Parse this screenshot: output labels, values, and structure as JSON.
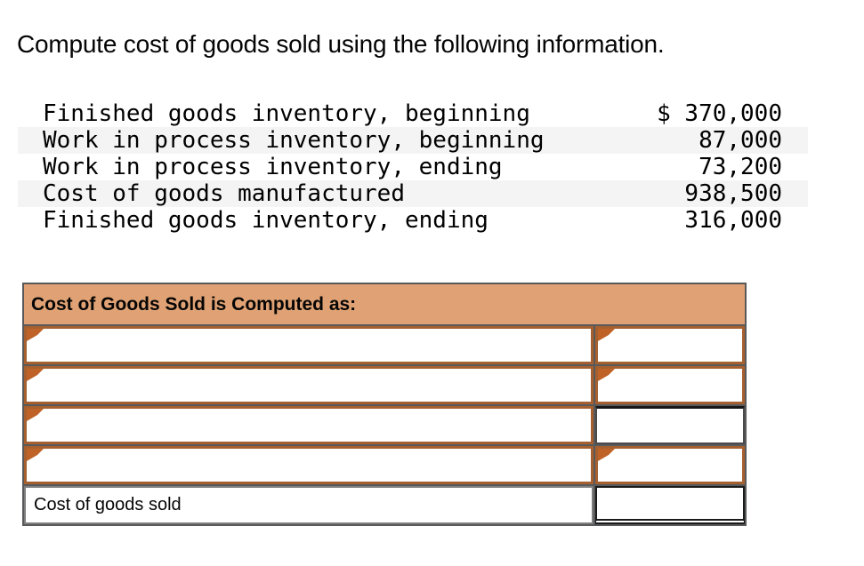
{
  "title": "Compute cost of goods sold using the following information.",
  "given": {
    "items": [
      {
        "label": "Finished goods inventory, beginning",
        "value": "$ 370,000"
      },
      {
        "label": "Work in process inventory, beginning",
        "value": "87,000"
      },
      {
        "label": "Work in process inventory, ending",
        "value": "73,200"
      },
      {
        "label": "Cost of goods manufactured",
        "value": "938,500"
      },
      {
        "label": "Finished goods inventory, ending",
        "value": "316,000"
      }
    ]
  },
  "worksheet": {
    "header": "Cost of Goods Sold is Computed as:",
    "rows": [
      {
        "left_value": "",
        "right_value": ""
      },
      {
        "left_value": "",
        "right_value": ""
      },
      {
        "left_value": "",
        "right_value": ""
      },
      {
        "left_value": "",
        "right_value": ""
      }
    ],
    "footer": {
      "label": "Cost of goods sold",
      "value": ""
    }
  },
  "colors": {
    "header_fill": "#e0a274",
    "answer_cell_border": "#a6602f",
    "marker": "#bf6227",
    "grid_line": "#58595b",
    "stripe": "#f4f4f4",
    "total_border": "#1a1a1a"
  }
}
